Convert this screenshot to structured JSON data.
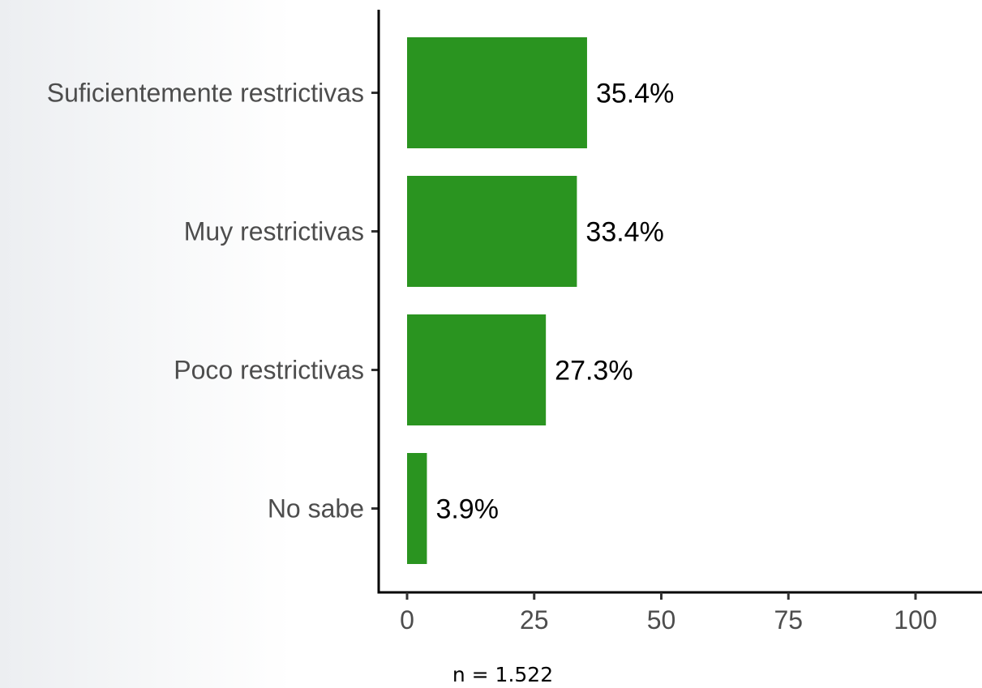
{
  "chart_data": {
    "type": "bar",
    "orientation": "horizontal",
    "categories": [
      "Suficientemente restrictivas",
      "Muy restrictivas",
      "Poco restrictivas",
      "No sabe"
    ],
    "values": [
      35.4,
      33.4,
      27.3,
      3.9
    ],
    "data_labels": [
      "35.4%",
      "33.4%",
      "27.3%",
      "3.9%"
    ],
    "title": "",
    "xlabel": "",
    "ylabel": "",
    "xlim": [
      0,
      110
    ],
    "x_ticks": [
      0,
      25,
      50,
      75,
      100
    ],
    "x_tick_labels": [
      "0",
      "25",
      "50",
      "75",
      "100"
    ],
    "grid": false,
    "bar_color": "#2a9420"
  },
  "note": "n = 1.522"
}
